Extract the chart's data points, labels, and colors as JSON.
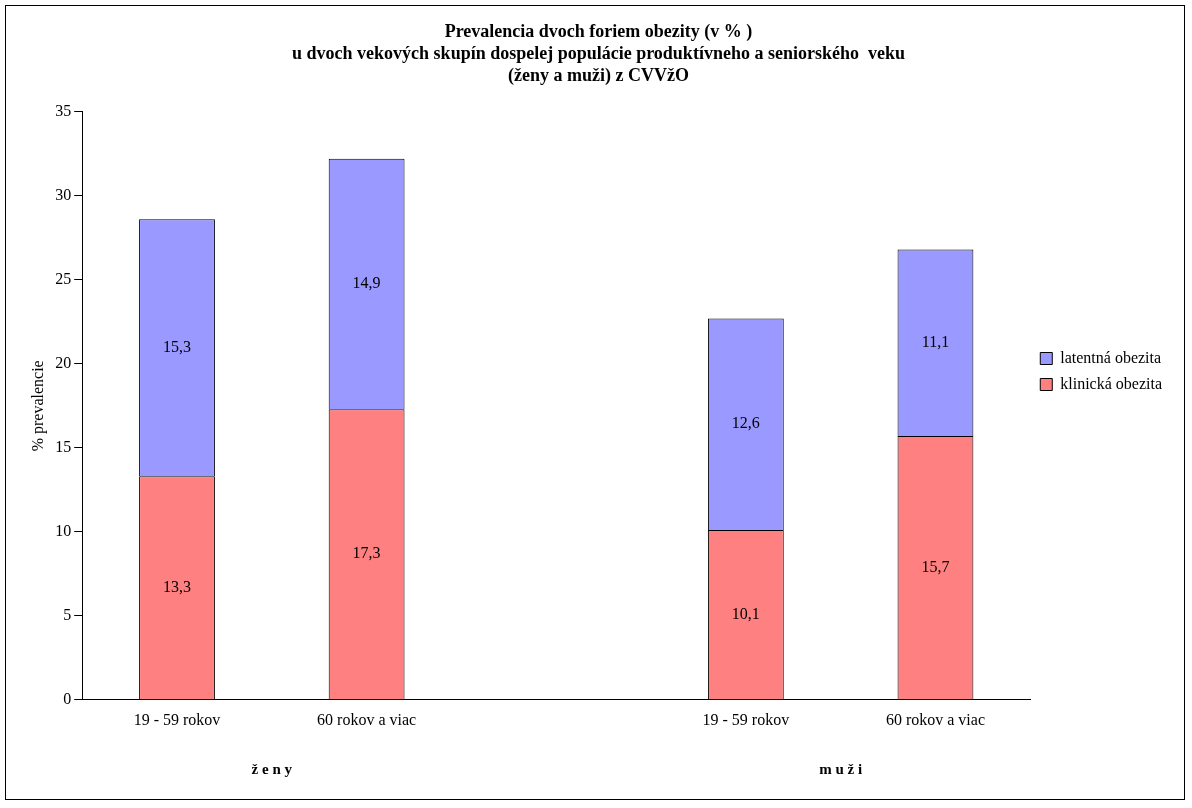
{
  "chart_data": {
    "type": "bar",
    "title": "Prevalencia dvoch foriem obezity (v % )\nu dvoch vekových skupín dospelej populácie produktívneho a seniorského  veku\n(ženy a muži) z CVVžO",
    "ylabel": "% prevalencie",
    "categories": [
      "19 - 59 rokov",
      "60 rokov a viac",
      null,
      "19 - 59 rokov",
      "60 rokov a viac"
    ],
    "series": [
      {
        "name": "klinická obezita",
        "color": "#ff8080",
        "values": [
          13.3,
          17.3,
          null,
          10.1,
          15.7
        ],
        "value_labels": [
          "13,3",
          "17,3",
          null,
          "10,1",
          "15,7"
        ]
      },
      {
        "name": "latentná obezita",
        "color": "#9999ff",
        "values": [
          15.3,
          14.9,
          null,
          12.6,
          11.1
        ],
        "value_labels": [
          "15,3",
          "14,9",
          null,
          "12,6",
          "11,1"
        ]
      }
    ],
    "stacked": true,
    "ylim": [
      0,
      35
    ],
    "yticks": [
      0,
      5,
      10,
      15,
      20,
      25,
      30,
      35
    ],
    "grid": false,
    "legend": "right",
    "annotations": [
      "ž e n y",
      "m u ž i"
    ]
  }
}
